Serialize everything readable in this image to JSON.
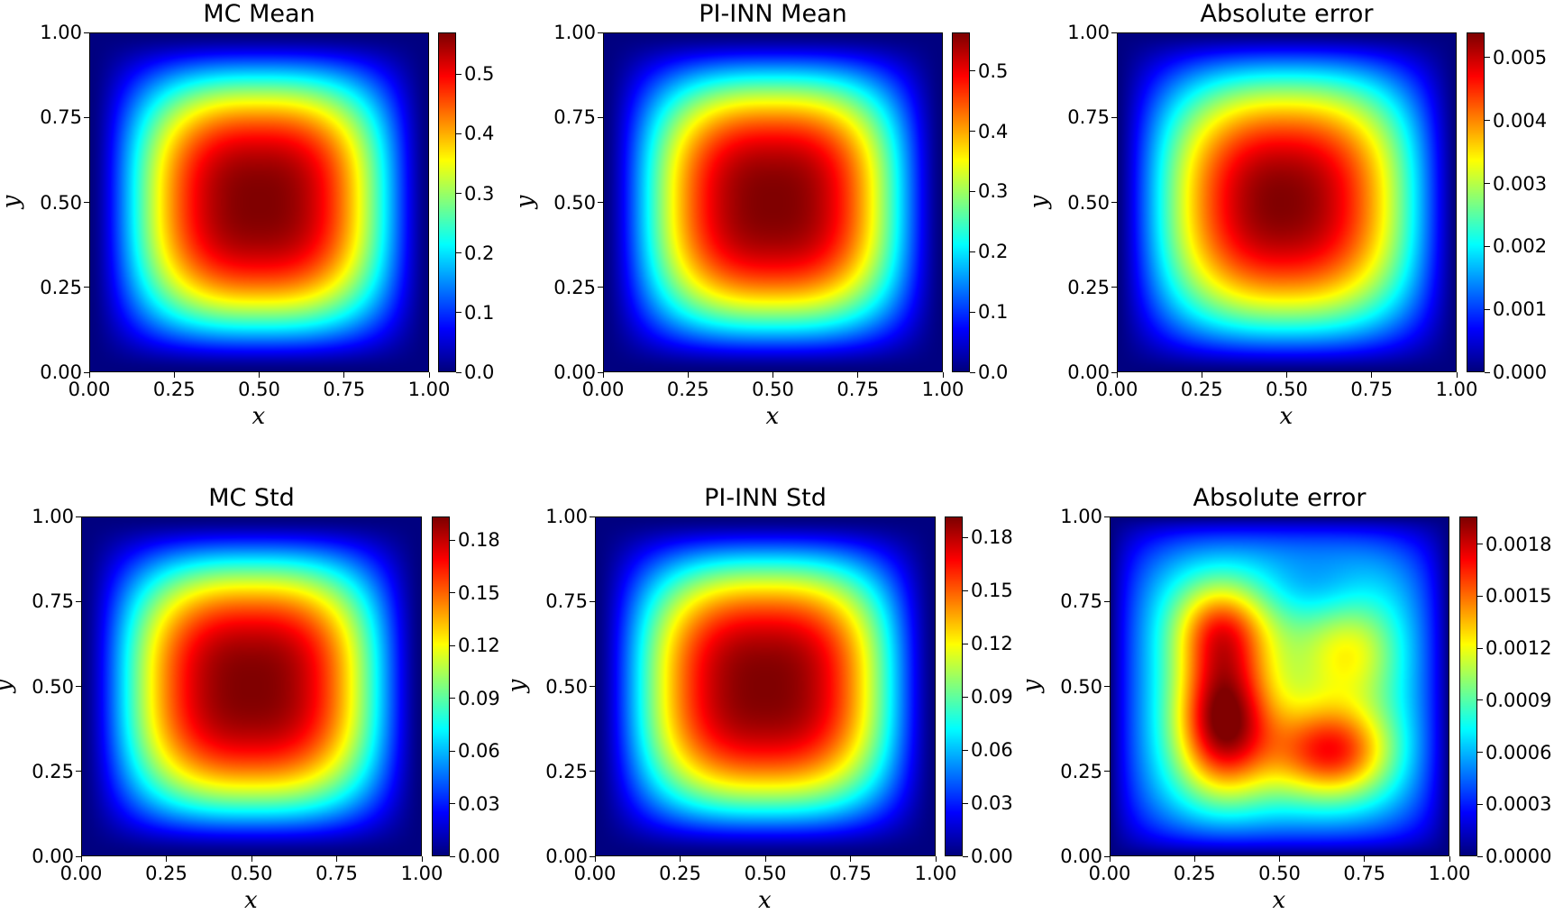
{
  "chart_data": [
    {
      "type": "heatmap",
      "title": "MC Mean",
      "xlabel": "x",
      "ylabel": "y",
      "xlim": [
        0,
        1
      ],
      "ylim": [
        0,
        1
      ],
      "xticks": [
        "0.00",
        "0.25",
        "0.50",
        "0.75",
        "1.00"
      ],
      "yticks": [
        "0.00",
        "0.25",
        "0.50",
        "0.75",
        "1.00"
      ],
      "colormap": "jet",
      "vmin": 0,
      "vmax": 0.57,
      "cbar_ticks": [
        0,
        0.1,
        0.2,
        0.3,
        0.4,
        0.5
      ],
      "cbar_labels": [
        "0.0",
        "0.1",
        "0.2",
        "0.3",
        "0.4",
        "0.5"
      ],
      "field": "mean",
      "peak": {
        "x": 0.5,
        "y": 0.5,
        "value": 0.57
      }
    },
    {
      "type": "heatmap",
      "title": "PI-INN Mean",
      "xlabel": "x",
      "ylabel": "y",
      "xlim": [
        0,
        1
      ],
      "ylim": [
        0,
        1
      ],
      "xticks": [
        "0.00",
        "0.25",
        "0.50",
        "0.75",
        "1.00"
      ],
      "yticks": [
        "0.00",
        "0.25",
        "0.50",
        "0.75",
        "1.00"
      ],
      "colormap": "jet",
      "vmin": 0,
      "vmax": 0.564,
      "cbar_ticks": [
        0,
        0.1,
        0.2,
        0.3,
        0.4,
        0.5
      ],
      "cbar_labels": [
        "0.0",
        "0.1",
        "0.2",
        "0.3",
        "0.4",
        "0.5"
      ],
      "field": "mean",
      "peak": {
        "x": 0.5,
        "y": 0.5,
        "value": 0.564
      }
    },
    {
      "type": "heatmap",
      "title": "Absolute error",
      "xlabel": "x",
      "ylabel": "y",
      "xlim": [
        0,
        1
      ],
      "ylim": [
        0,
        1
      ],
      "xticks": [
        "0.00",
        "0.25",
        "0.50",
        "0.75",
        "1.00"
      ],
      "yticks": [
        "0.00",
        "0.25",
        "0.50",
        "0.75",
        "1.00"
      ],
      "colormap": "jet",
      "vmin": 0,
      "vmax": 0.0054,
      "cbar_ticks": [
        0,
        0.001,
        0.002,
        0.003,
        0.004,
        0.005
      ],
      "cbar_labels": [
        "0.000",
        "0.001",
        "0.002",
        "0.003",
        "0.004",
        "0.005"
      ],
      "field": "mean_err",
      "peak": {
        "x": 0.48,
        "y": 0.5,
        "value": 0.0054
      }
    },
    {
      "type": "heatmap",
      "title": "MC Std",
      "xlabel": "x",
      "ylabel": "y",
      "xlim": [
        0,
        1
      ],
      "ylim": [
        0,
        1
      ],
      "xticks": [
        "0.00",
        "0.25",
        "0.50",
        "0.75",
        "1.00"
      ],
      "yticks": [
        "0.00",
        "0.25",
        "0.50",
        "0.75",
        "1.00"
      ],
      "colormap": "jet",
      "vmin": 0,
      "vmax": 0.1935,
      "cbar_ticks": [
        0,
        0.03,
        0.06,
        0.09,
        0.12,
        0.15,
        0.18
      ],
      "cbar_labels": [
        "0.00",
        "0.03",
        "0.06",
        "0.09",
        "0.12",
        "0.15",
        "0.18"
      ],
      "field": "mean",
      "peak": {
        "x": 0.5,
        "y": 0.5,
        "value": 0.1935
      }
    },
    {
      "type": "heatmap",
      "title": "PI-INN Std",
      "xlabel": "x",
      "ylabel": "y",
      "xlim": [
        0,
        1
      ],
      "ylim": [
        0,
        1
      ],
      "xticks": [
        "0.00",
        "0.25",
        "0.50",
        "0.75",
        "1.00"
      ],
      "yticks": [
        "0.00",
        "0.25",
        "0.50",
        "0.75",
        "1.00"
      ],
      "colormap": "jet",
      "vmin": 0,
      "vmax": 0.1917,
      "cbar_ticks": [
        0,
        0.03,
        0.06,
        0.09,
        0.12,
        0.15,
        0.18
      ],
      "cbar_labels": [
        "0.00",
        "0.03",
        "0.06",
        "0.09",
        "0.12",
        "0.15",
        "0.18"
      ],
      "field": "mean",
      "peak": {
        "x": 0.5,
        "y": 0.5,
        "value": 0.1917
      }
    },
    {
      "type": "heatmap",
      "title": "Absolute error",
      "xlabel": "x",
      "ylabel": "y",
      "xlim": [
        0,
        1
      ],
      "ylim": [
        0,
        1
      ],
      "xticks": [
        "0.00",
        "0.25",
        "0.50",
        "0.75",
        "1.00"
      ],
      "yticks": [
        "0.00",
        "0.25",
        "0.50",
        "0.75",
        "1.00"
      ],
      "colormap": "jet",
      "vmin": 0,
      "vmax": 0.00196,
      "cbar_ticks": [
        0,
        0.0003,
        0.0006,
        0.0009,
        0.0012,
        0.0015,
        0.0018
      ],
      "cbar_labels": [
        "0.0000",
        "0.0003",
        "0.0006",
        "0.0009",
        "0.0012",
        "0.0015",
        "0.0018"
      ],
      "field": "std_err",
      "peak": {
        "x": 0.33,
        "y": 0.4,
        "value": 0.00196
      }
    }
  ]
}
